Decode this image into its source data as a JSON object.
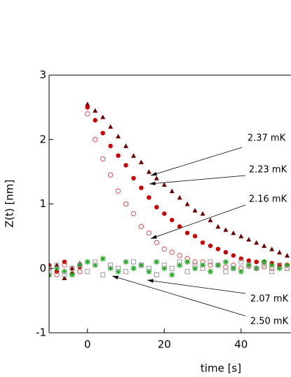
{
  "chart_data": {
    "type": "scatter",
    "x_label": "time [s]",
    "y_label": "Z(t) [nm]",
    "xlim": [
      -10,
      53
    ],
    "ylim": [
      -1,
      3
    ],
    "xticks": [
      0,
      20,
      40
    ],
    "yticks": [
      -1,
      0,
      1,
      2,
      3
    ],
    "x": [
      -10,
      -8,
      -6,
      -4,
      -2,
      0,
      2,
      4,
      6,
      8,
      10,
      12,
      14,
      16,
      18,
      20,
      22,
      24,
      26,
      28,
      30,
      32,
      34,
      36,
      38,
      40,
      42,
      44,
      46,
      48,
      50,
      52
    ],
    "series": [
      {
        "name": "2.37 mK",
        "color": "#6b0000",
        "marker": "triangle",
        "values": [
          -0.1,
          0.05,
          -0.15,
          0.0,
          0.08,
          2.55,
          2.45,
          2.35,
          2.2,
          2.05,
          1.9,
          1.75,
          1.65,
          1.5,
          1.4,
          1.3,
          1.2,
          1.1,
          1.0,
          0.9,
          0.85,
          0.75,
          0.65,
          0.6,
          0.55,
          0.5,
          0.45,
          0.4,
          0.35,
          0.3,
          0.25,
          0.2
        ]
      },
      {
        "name": "2.23 mK",
        "color": "#cc0000",
        "marker": "circle",
        "values": [
          0.05,
          -0.05,
          0.1,
          -0.08,
          0.02,
          2.5,
          2.3,
          2.1,
          1.9,
          1.75,
          1.6,
          1.4,
          1.25,
          1.1,
          0.95,
          0.85,
          0.75,
          0.65,
          0.55,
          0.5,
          0.4,
          0.35,
          0.3,
          0.25,
          0.2,
          0.15,
          0.12,
          0.1,
          0.1,
          0.08,
          0.05,
          0.05
        ]
      },
      {
        "name": "2.16 mK",
        "color": "#e05050",
        "marker": "open-circle",
        "values": [
          0.0,
          -0.1,
          0.05,
          0.0,
          -0.05,
          2.4,
          2.0,
          1.7,
          1.45,
          1.2,
          1.0,
          0.85,
          0.65,
          0.55,
          0.4,
          0.3,
          0.25,
          0.2,
          0.15,
          0.1,
          0.1,
          0.05,
          0.05,
          0.02,
          0.05,
          0.0,
          0.03,
          0.0,
          0.02,
          0.0,
          0.03,
          0.0
        ]
      },
      {
        "name": "2.07 mK",
        "color": "#22aa22",
        "marker": "star",
        "values": [
          -0.1,
          0.0,
          -0.05,
          -0.1,
          0.05,
          0.1,
          0.05,
          0.15,
          0.0,
          -0.05,
          0.1,
          0.0,
          0.05,
          -0.05,
          0.1,
          0.0,
          -0.1,
          0.05,
          0.1,
          0.0,
          0.05,
          -0.05,
          0.05,
          0.1,
          0.0,
          -0.05,
          0.05,
          0.0,
          0.1,
          0.05,
          0.0,
          0.05
        ]
      },
      {
        "name": "2.50 mK",
        "color": "#999999",
        "marker": "open-square",
        "values": [
          -0.05,
          0.05,
          -0.1,
          0.0,
          0.05,
          -0.05,
          0.1,
          -0.1,
          0.05,
          0.0,
          -0.05,
          0.1,
          0.05,
          0.0,
          -0.1,
          0.05,
          0.0,
          0.1,
          -0.05,
          0.05,
          0.0,
          0.1,
          0.05,
          -0.05,
          0.0,
          0.1,
          0.05,
          0.0,
          0.05,
          -0.05,
          0.05,
          0.0
        ]
      }
    ]
  }
}
